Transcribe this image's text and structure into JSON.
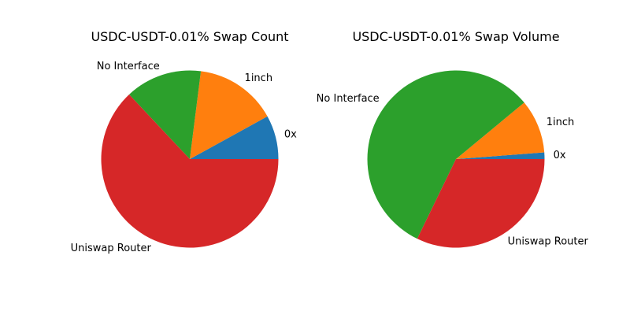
{
  "chart_data": [
    {
      "type": "pie",
      "title": "USDC-USDT-0.01% Swap Count",
      "slices": [
        {
          "label": "0x",
          "value": 8,
          "color": "#1f77b4"
        },
        {
          "label": "1inch",
          "value": 15,
          "color": "#ff7f0e"
        },
        {
          "label": "No Interface",
          "value": 14,
          "color": "#2ca02c"
        },
        {
          "label": "Uniswap Router",
          "value": 63,
          "color": "#d62728"
        }
      ],
      "start_angle_deg": 0,
      "direction": "counterclockwise"
    },
    {
      "type": "pie",
      "title": "USDC-USDT-0.01% Swap Volume",
      "slices": [
        {
          "label": "0x",
          "value": 1.2,
          "color": "#1f77b4"
        },
        {
          "label": "1inch",
          "value": 9.8,
          "color": "#ff7f0e"
        },
        {
          "label": "No Interface",
          "value": 56.8,
          "color": "#2ca02c"
        },
        {
          "label": "Uniswap Router",
          "value": 32.2,
          "color": "#d62728"
        }
      ],
      "start_angle_deg": 0,
      "direction": "counterclockwise"
    }
  ]
}
